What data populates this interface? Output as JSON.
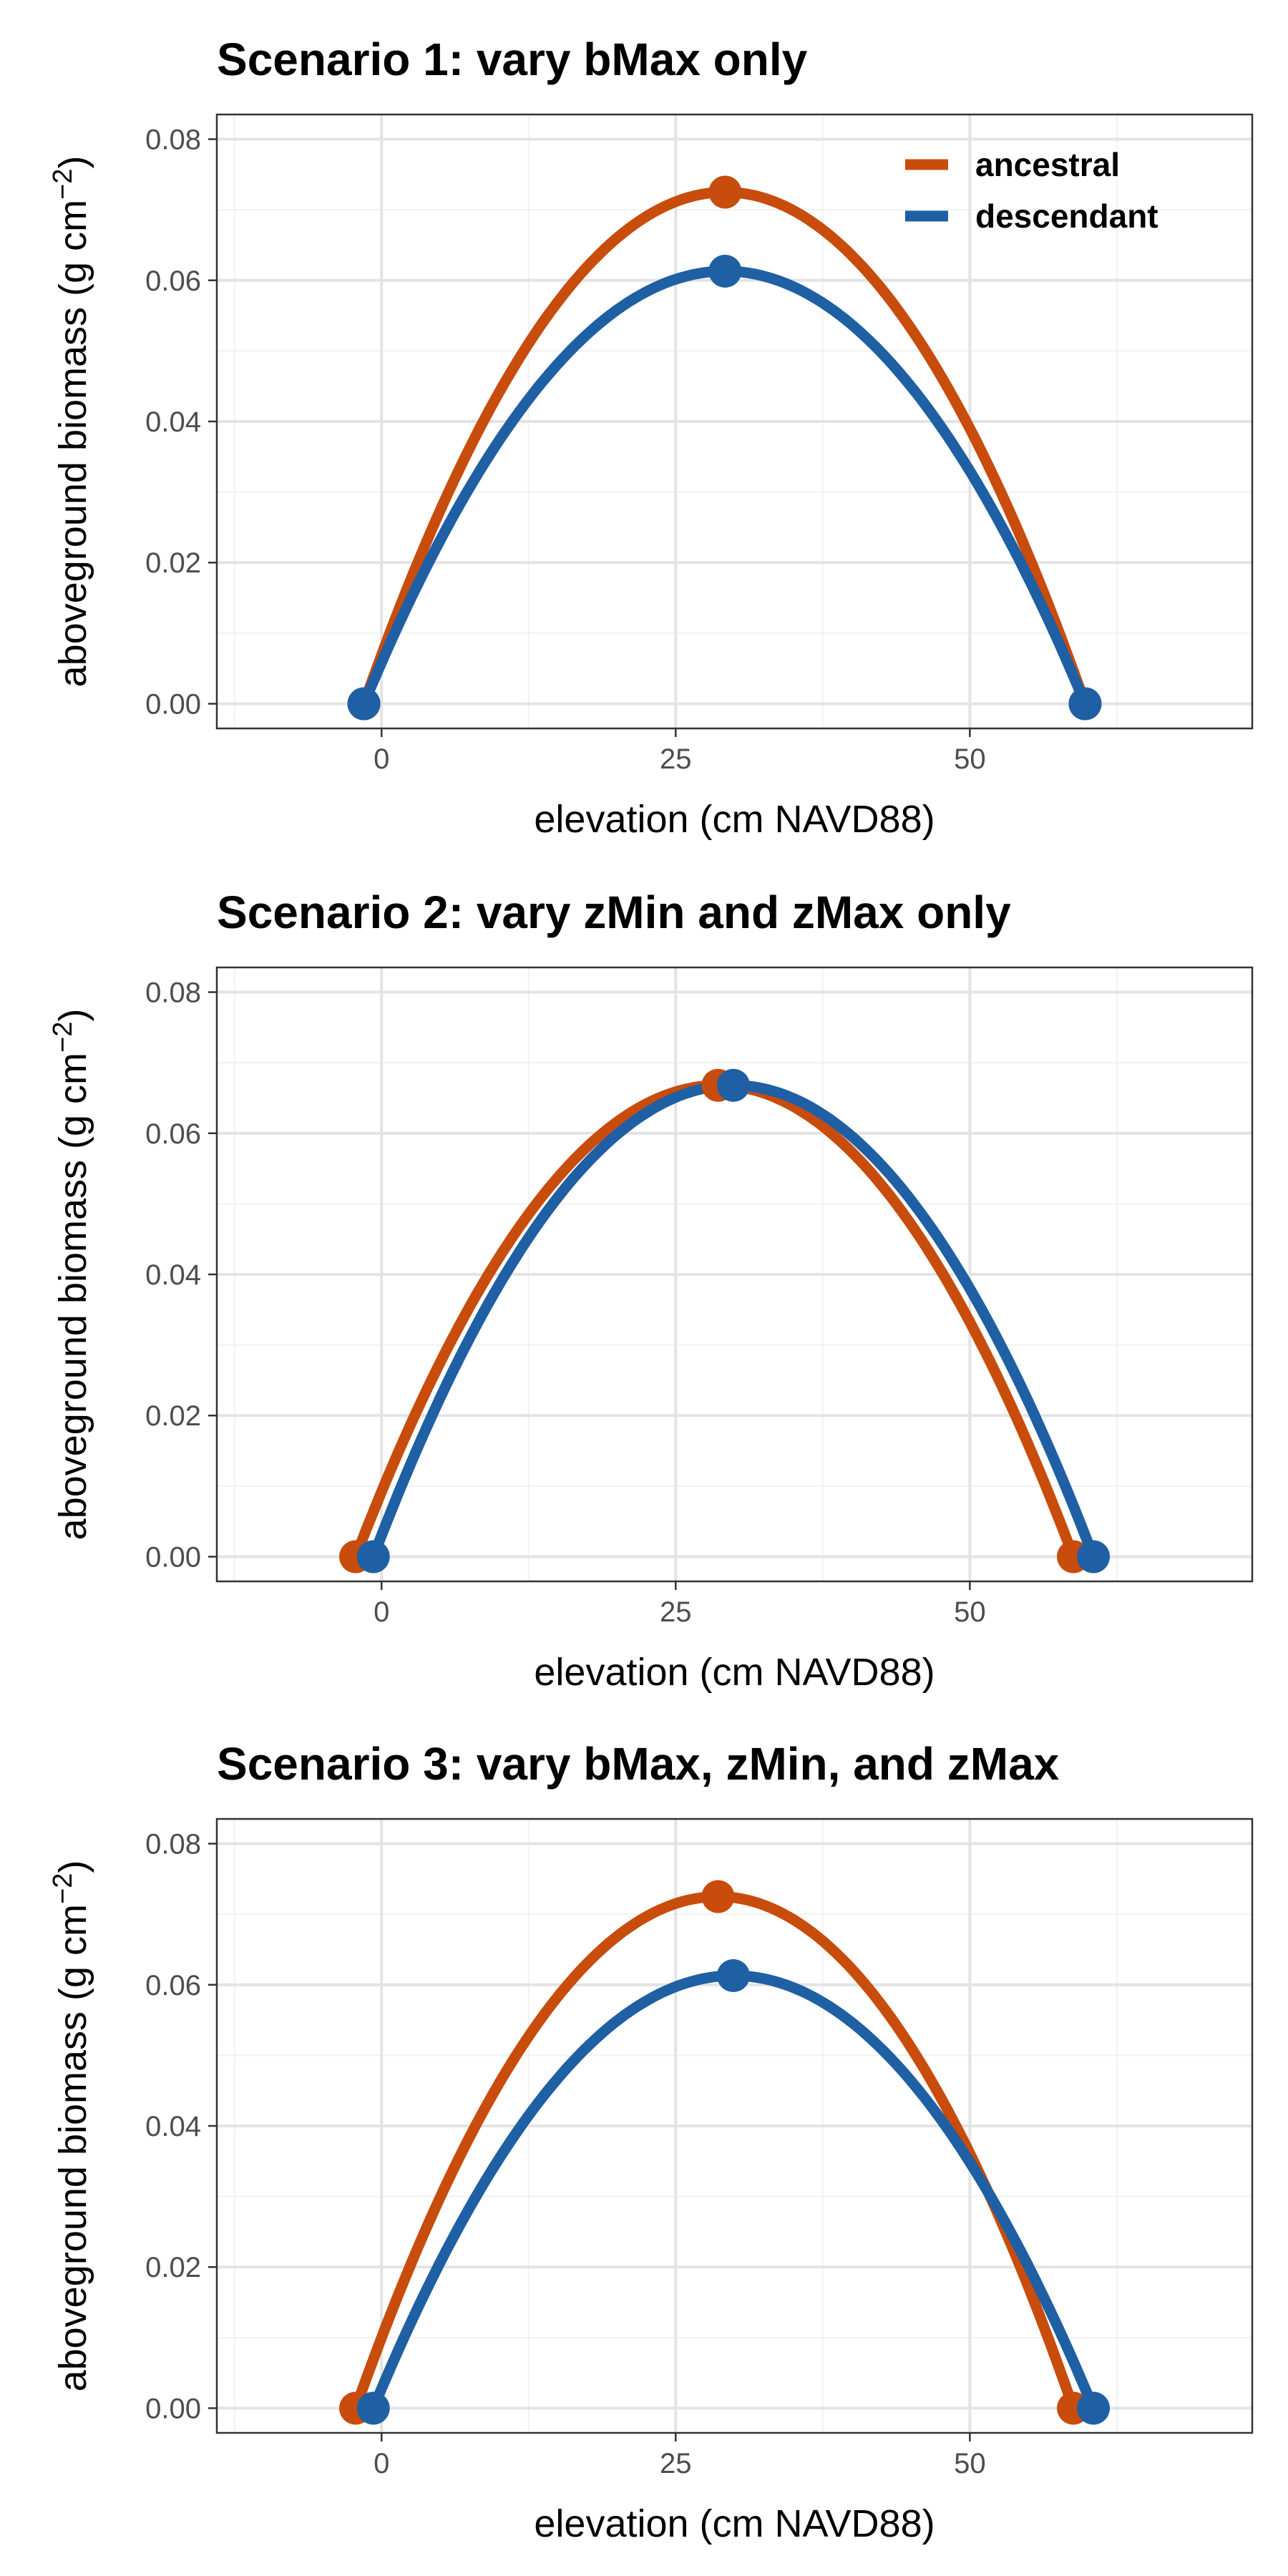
{
  "colors": {
    "ancestral": "#C84C0C",
    "descendant": "#1F5FA4",
    "grid_major": "#E3E3E3",
    "grid_minor": "#F1F1F1",
    "panel_border": "#333333",
    "tick_label": "#4D4D4D",
    "text": "#000000"
  },
  "legend": {
    "position": "top-right",
    "entries": [
      "ancestral",
      "descendant"
    ]
  },
  "chart_data": [
    {
      "type": "line",
      "title": "Scenario 1: vary bMax only",
      "xlabel": "elevation (cm NAVD88)",
      "ylabel": "aboveground biomass (g cm",
      "ylabel_sup": "−2",
      "ylabel_close": ")",
      "xlim": [
        -14,
        74
      ],
      "ylim": [
        -0.0035,
        0.0835
      ],
      "x_ticks": [
        0,
        25,
        50
      ],
      "x_tick_labels": [
        "0",
        "25",
        "50"
      ],
      "y_ticks": [
        0.0,
        0.02,
        0.04,
        0.06,
        0.08
      ],
      "y_tick_labels": [
        "0.00",
        "0.02",
        "0.04",
        "0.06",
        "0.08"
      ],
      "grid": true,
      "show_legend": true,
      "series": [
        {
          "name": "ancestral",
          "zmin": -1.5,
          "zmax": 59.8,
          "peak_x": 29.2,
          "bmax": 0.0725,
          "points": [
            [
              -1.5,
              0.0
            ],
            [
              29.2,
              0.0725
            ],
            [
              59.8,
              0.0
            ]
          ]
        },
        {
          "name": "descendant",
          "zmin": -1.5,
          "zmax": 59.8,
          "peak_x": 29.2,
          "bmax": 0.0613,
          "points": [
            [
              -1.5,
              0.0
            ],
            [
              29.2,
              0.0613
            ],
            [
              59.8,
              0.0
            ]
          ]
        }
      ]
    },
    {
      "type": "line",
      "title": "Scenario 2: vary zMin and zMax only",
      "xlabel": "elevation (cm NAVD88)",
      "ylabel": "aboveground biomass (g cm",
      "ylabel_sup": "−2",
      "ylabel_close": ")",
      "xlim": [
        -14,
        74
      ],
      "ylim": [
        -0.0035,
        0.0835
      ],
      "x_ticks": [
        0,
        25,
        50
      ],
      "x_tick_labels": [
        "0",
        "25",
        "50"
      ],
      "y_ticks": [
        0.0,
        0.02,
        0.04,
        0.06,
        0.08
      ],
      "y_tick_labels": [
        "0.00",
        "0.02",
        "0.04",
        "0.06",
        "0.08"
      ],
      "grid": true,
      "show_legend": false,
      "series": [
        {
          "name": "ancestral",
          "zmin": -2.2,
          "zmax": 58.8,
          "peak_x": 28.6,
          "bmax": 0.0668,
          "points": [
            [
              -2.2,
              0.0
            ],
            [
              28.6,
              0.0668
            ],
            [
              58.8,
              0.0
            ]
          ]
        },
        {
          "name": "descendant",
          "zmin": -0.7,
          "zmax": 60.5,
          "peak_x": 29.9,
          "bmax": 0.0668,
          "points": [
            [
              -0.7,
              0.0
            ],
            [
              29.9,
              0.0668
            ],
            [
              60.5,
              0.0
            ]
          ]
        }
      ]
    },
    {
      "type": "line",
      "title": "Scenario 3: vary bMax, zMin, and zMax",
      "xlabel": "elevation (cm NAVD88)",
      "ylabel": "aboveground biomass (g cm",
      "ylabel_sup": "−2",
      "ylabel_close": ")",
      "xlim": [
        -14,
        74
      ],
      "ylim": [
        -0.0035,
        0.0835
      ],
      "x_ticks": [
        0,
        25,
        50
      ],
      "x_tick_labels": [
        "0",
        "25",
        "50"
      ],
      "y_ticks": [
        0.0,
        0.02,
        0.04,
        0.06,
        0.08
      ],
      "y_tick_labels": [
        "0.00",
        "0.02",
        "0.04",
        "0.06",
        "0.08"
      ],
      "grid": true,
      "show_legend": false,
      "series": [
        {
          "name": "ancestral",
          "zmin": -2.2,
          "zmax": 58.8,
          "peak_x": 28.6,
          "bmax": 0.0725,
          "points": [
            [
              -2.2,
              0.0
            ],
            [
              28.6,
              0.0725
            ],
            [
              58.8,
              0.0
            ]
          ]
        },
        {
          "name": "descendant",
          "zmin": -0.7,
          "zmax": 60.5,
          "peak_x": 29.9,
          "bmax": 0.0613,
          "points": [
            [
              -0.7,
              0.0
            ],
            [
              29.9,
              0.0613
            ],
            [
              60.5,
              0.0
            ]
          ]
        }
      ]
    }
  ]
}
